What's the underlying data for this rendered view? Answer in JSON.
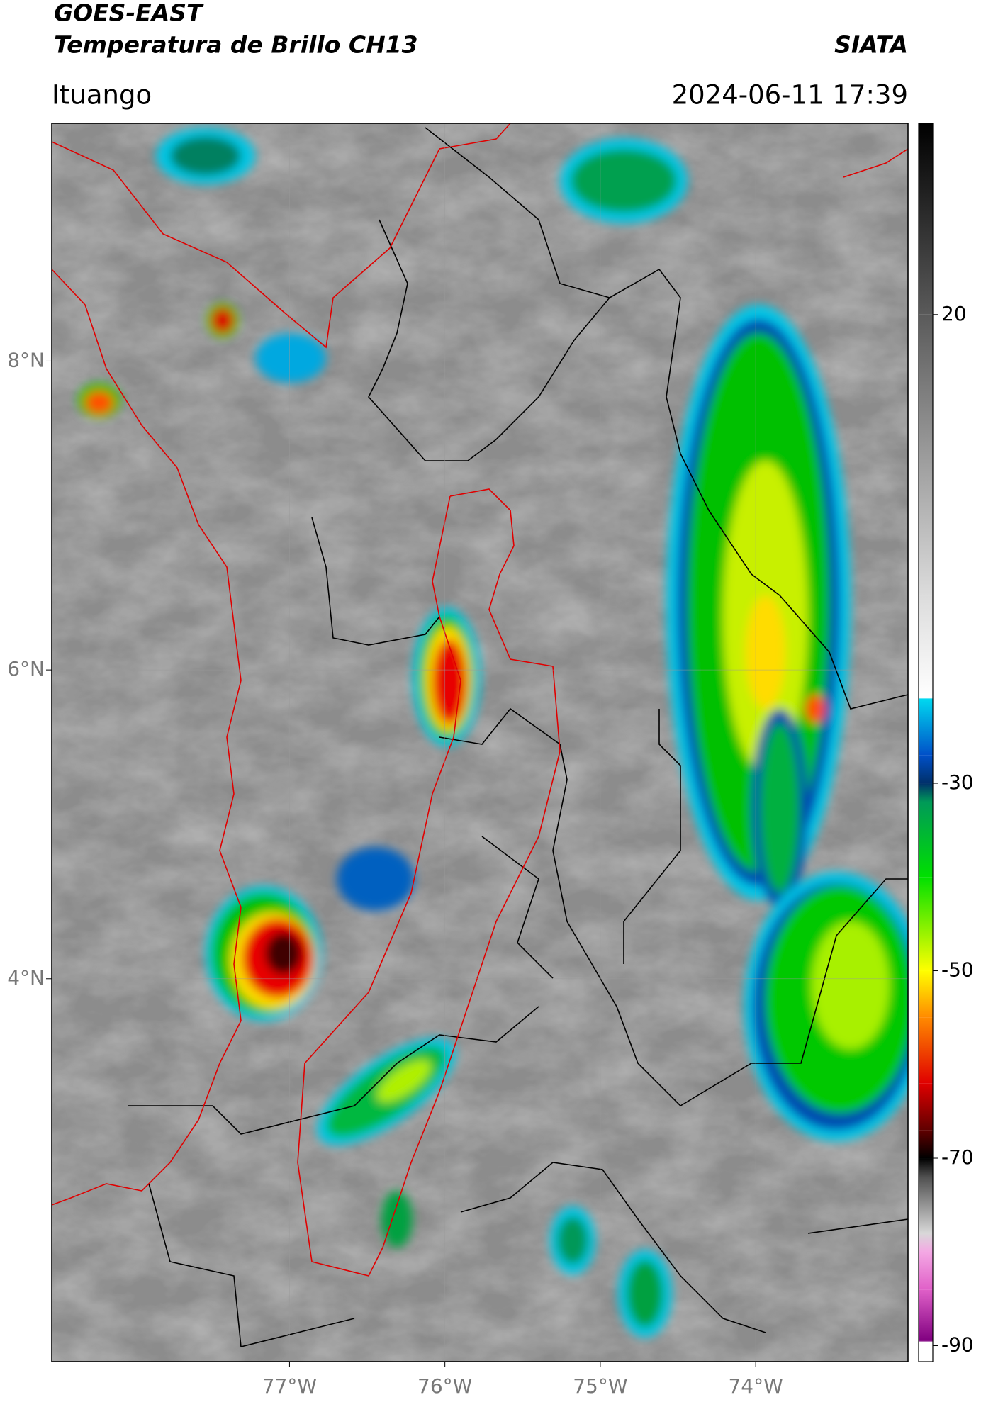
{
  "header": {
    "title": "GOES-EAST",
    "subtitle": "Temperatura de Brillo CH13",
    "brand": "SIATA",
    "location": "Ituango",
    "timestamp": "2024-06-11 17:39"
  },
  "map": {
    "xlim": [
      -78.53,
      -73.02
    ],
    "ylim": [
      1.52,
      9.54
    ],
    "xticks": [
      {
        "value": -77,
        "label": "77°W"
      },
      {
        "value": -76,
        "label": "76°W"
      },
      {
        "value": -75,
        "label": "75°W"
      },
      {
        "value": -74,
        "label": "74°W"
      }
    ],
    "yticks": [
      {
        "value": 8,
        "label": "8°N"
      },
      {
        "value": 6,
        "label": "6°N"
      },
      {
        "value": 4,
        "label": "4°N"
      }
    ],
    "grid": true
  },
  "colorbar": {
    "lim": [
      -91.7,
      40.4
    ],
    "ticks": [
      20,
      -30,
      -50,
      -70,
      -90
    ],
    "colormap": [
      [
        40.4,
        "#000000"
      ],
      [
        20,
        "#5a5a5a"
      ],
      [
        -10,
        "#dcdcdc"
      ],
      [
        -20.9,
        "#ffffff"
      ],
      [
        -21,
        "#00d8f0"
      ],
      [
        -27,
        "#0050c8"
      ],
      [
        -30,
        "#00306a"
      ],
      [
        -32,
        "#009a58"
      ],
      [
        -40,
        "#00e000"
      ],
      [
        -50,
        "#ffff00"
      ],
      [
        -55,
        "#ff8a00"
      ],
      [
        -62,
        "#e00000"
      ],
      [
        -67,
        "#600000"
      ],
      [
        -70,
        "#000000"
      ],
      [
        -72,
        "#505050"
      ],
      [
        -78,
        "#d8d8d8"
      ],
      [
        -80,
        "#f4a8e4"
      ],
      [
        -84,
        "#e060c8"
      ],
      [
        -89.5,
        "#800080"
      ],
      [
        -89.6,
        "#ffffff"
      ],
      [
        -91.7,
        "#ffffff"
      ]
    ]
  }
}
